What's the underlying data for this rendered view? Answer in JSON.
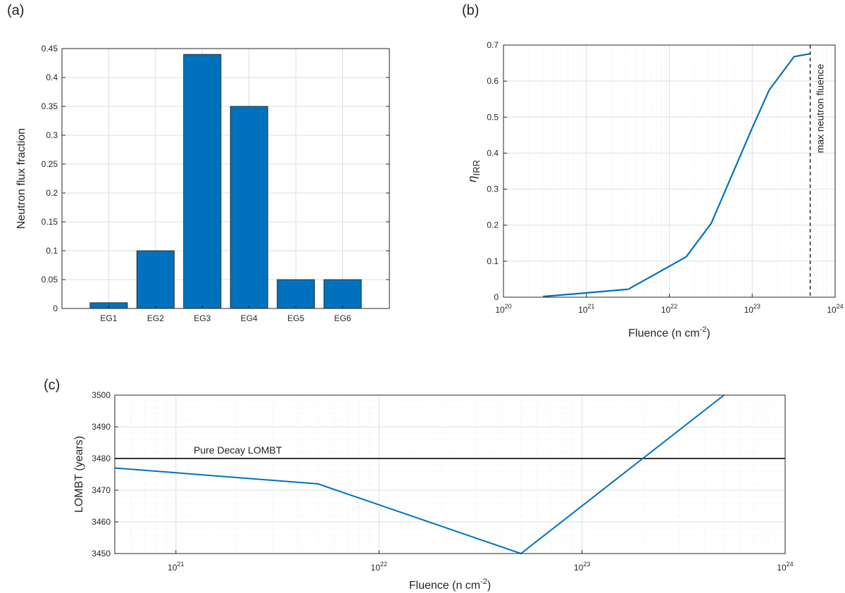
{
  "panel_labels": [
    "(a)",
    "(b)",
    "(c)"
  ],
  "colors": {
    "series": "#0072BD",
    "grid": "#dedede",
    "axis": "#262626",
    "reference": "#333333"
  },
  "chart_data": [
    {
      "id": "a",
      "type": "bar",
      "categories": [
        "EG1",
        "EG2",
        "EG3",
        "EG4",
        "EG5",
        "EG6"
      ],
      "values": [
        0.01,
        0.1,
        0.44,
        0.35,
        0.05,
        0.05
      ],
      "ylabel": "Neutron flux fraction",
      "ylim": [
        0,
        0.45
      ],
      "yticks": [
        0,
        0.05,
        0.1,
        0.15,
        0.2,
        0.25,
        0.3,
        0.35,
        0.4,
        0.45
      ],
      "ytick_labels": [
        "0",
        "0.05",
        "0.1",
        "0.15",
        "0.2",
        "0.25",
        "0.3",
        "0.35",
        "0.4",
        "0.45"
      ],
      "grid": true
    },
    {
      "id": "b",
      "type": "line",
      "x_scale": "log",
      "xlim": [
        1e+20,
        1e+24
      ],
      "ylim": [
        0,
        0.7
      ],
      "xtick_exponents": [
        "20",
        "21",
        "22",
        "23",
        "24"
      ],
      "ytick_labels": [
        "0",
        "0.1",
        "0.2",
        "0.3",
        "0.4",
        "0.5",
        "0.6",
        "0.7"
      ],
      "yticks": [
        0,
        0.1,
        0.2,
        0.3,
        0.4,
        0.5,
        0.6,
        0.7
      ],
      "xlabel": {
        "text": "Fluence (n cm",
        "sup": "-2",
        "close": ")"
      },
      "ylabel": {
        "symbol": "η",
        "sub": "IRR"
      },
      "series": [
        {
          "x": [
            3e+20,
            1e+21,
            3.2e+21,
            1.6e+22,
            3.2e+22,
            1e+23,
            1.6e+23,
            3.2e+23,
            5e+23
          ],
          "y": [
            0.002,
            0.012,
            0.022,
            0.112,
            0.205,
            0.47,
            0.575,
            0.668,
            0.676
          ]
        }
      ],
      "reference_line": {
        "x": 5e+23,
        "style": "dashed",
        "label": "max neutron fluence"
      },
      "grid": true
    },
    {
      "id": "c",
      "type": "line",
      "x_scale": "log",
      "xlim": [
        5e+20,
        1e+24
      ],
      "ylim": [
        3450,
        3500
      ],
      "xtick_exponents": [
        "21",
        "22",
        "23",
        "24"
      ],
      "yticks": [
        3450,
        3460,
        3470,
        3480,
        3490,
        3500
      ],
      "ytick_labels": [
        "3450",
        "3460",
        "3470",
        "3480",
        "3490",
        "3500"
      ],
      "xlabel": {
        "text": "Fluence (n cm",
        "sup": "-2",
        "close": ")"
      },
      "ylabel": "LOMBT (years)",
      "series": [
        {
          "x": [
            5e+20,
            5e+21,
            5e+22,
            5e+23
          ],
          "y": [
            3477,
            3472,
            3450,
            3500
          ]
        }
      ],
      "reference_line": {
        "y": 3480,
        "label": "Pure Decay LOMBT"
      },
      "grid": true
    }
  ]
}
